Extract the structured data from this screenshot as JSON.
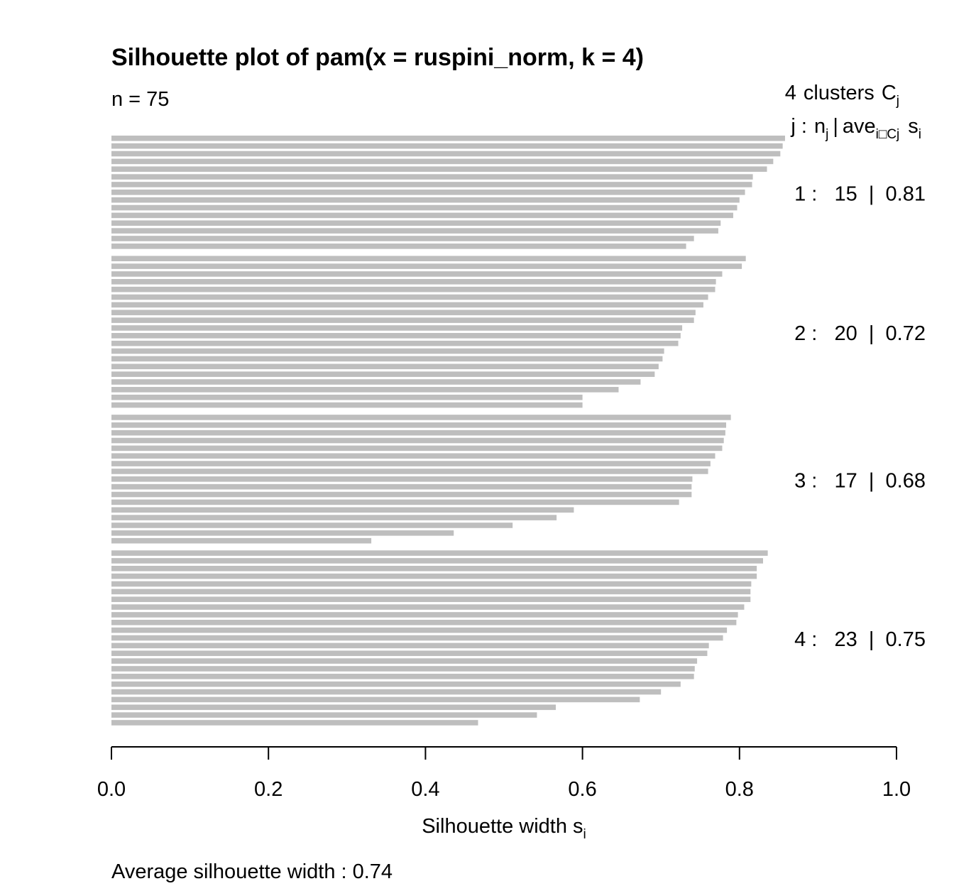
{
  "chart_data": {
    "type": "bar",
    "orientation": "horizontal",
    "title": "Silhouette plot of pam(x = ruspini_norm, k = 4)",
    "n_label": "n = 75",
    "header": {
      "clusters_count": "4",
      "clusters_word": "clusters",
      "clusters_symbol": "C",
      "clusters_sub": "j",
      "col_j": "j :",
      "col_n": "n",
      "col_n_sub": "j",
      "col_sep": "|",
      "col_ave": "ave",
      "col_ave_sub": "i□Cj",
      "col_s": "s",
      "col_s_sub": "i"
    },
    "xlabel": "Silhouette width s",
    "xlabel_sub": "i",
    "xlim": [
      0,
      1
    ],
    "x_ticks": [
      "0.0",
      "0.2",
      "0.4",
      "0.6",
      "0.8",
      "1.0"
    ],
    "x_tick_values": [
      0,
      0.2,
      0.4,
      0.6,
      0.8,
      1.0
    ],
    "bar_color": "#bebebe",
    "average_label": "Average silhouette width :  0.74",
    "clusters": [
      {
        "label": "1 :   15  |  0.81",
        "n": 15,
        "ave": 0.81,
        "values": [
          0.858,
          0.855,
          0.852,
          0.843,
          0.835,
          0.817,
          0.816,
          0.807,
          0.8,
          0.797,
          0.792,
          0.776,
          0.773,
          0.742,
          0.732
        ]
      },
      {
        "label": "2 :   20  |  0.72",
        "n": 20,
        "ave": 0.72,
        "values": [
          0.808,
          0.803,
          0.778,
          0.77,
          0.769,
          0.76,
          0.754,
          0.744,
          0.742,
          0.727,
          0.725,
          0.722,
          0.704,
          0.702,
          0.697,
          0.692,
          0.674,
          0.646,
          0.6,
          0.6
        ]
      },
      {
        "label": "3 :   17  |  0.68",
        "n": 17,
        "ave": 0.68,
        "values": [
          0.789,
          0.783,
          0.782,
          0.78,
          0.778,
          0.769,
          0.763,
          0.76,
          0.74,
          0.739,
          0.739,
          0.723,
          0.589,
          0.567,
          0.511,
          0.436,
          0.331
        ]
      },
      {
        "label": "4 :   23  |  0.75",
        "n": 23,
        "ave": 0.75,
        "values": [
          0.836,
          0.83,
          0.822,
          0.822,
          0.815,
          0.814,
          0.814,
          0.806,
          0.798,
          0.796,
          0.784,
          0.779,
          0.761,
          0.759,
          0.746,
          0.743,
          0.742,
          0.725,
          0.7,
          0.673,
          0.566,
          0.542,
          0.467
        ]
      }
    ]
  }
}
